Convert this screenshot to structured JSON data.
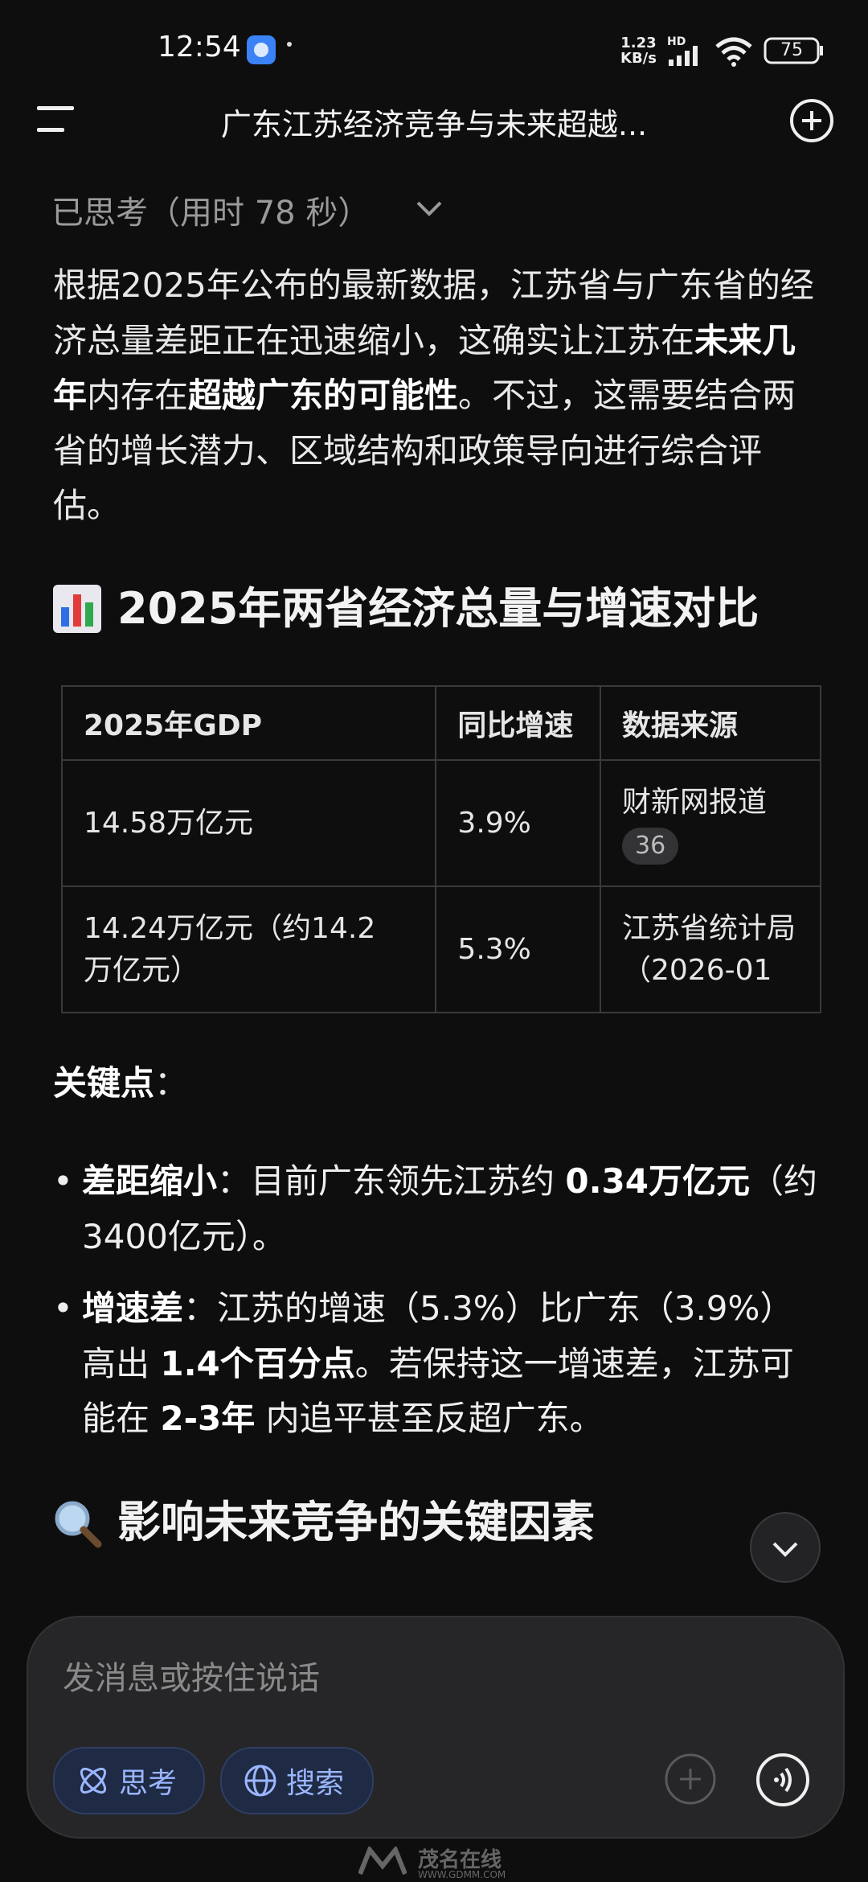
{
  "status_bar": {
    "time": "12:54",
    "network_speed": "1.23",
    "network_unit": "KB/s",
    "signal_label": "HD",
    "battery": "75"
  },
  "header": {
    "title": "广东江苏经济竞争与未来超越..."
  },
  "thinking": {
    "label": "已思考（用时 78 秒）"
  },
  "intro": [
    {
      "text": "根据2025年公布的最新数据，江苏省与广东省的经济总量差距正在迅速缩小，这确实让江苏在"
    },
    {
      "text": "未来几年",
      "bold": true
    },
    {
      "text": "内存在"
    },
    {
      "text": "超越广东的可能性",
      "bold": true
    },
    {
      "text": "。不过，这需要结合两省的增长潜力、区域结构和政策导向进行综合评估。"
    }
  ],
  "section_1": {
    "title": "2025年两省经济总量与增速对比"
  },
  "table": {
    "columns": [
      "2025年GDP",
      "同比增速",
      "数据来源"
    ],
    "rows": [
      [
        "14.58万亿元",
        "3.9%",
        "财新网报道"
      ],
      [
        "14.24万亿元（约14.2万亿元）",
        "5.3%",
        "江苏省统计局（2026-01"
      ]
    ],
    "citation": "36"
  },
  "key_points": [
    {
      "text": "关键点",
      "bold": true
    },
    {
      "text": "："
    }
  ],
  "bullets": [
    [
      {
        "text": "差距缩小",
        "bold": true
      },
      {
        "text": "：目前广东领先江苏约 "
      },
      {
        "text": "0.34万亿元",
        "bold": true
      },
      {
        "text": "（约3400亿元）。"
      }
    ],
    [
      {
        "text": "增速差",
        "bold": true
      },
      {
        "text": "：江苏的增速（5.3%）比广东（3.9%）高出 "
      },
      {
        "text": "1.4个百分点",
        "bold": true
      },
      {
        "text": "。若保持这一增速差，江苏可能在 "
      },
      {
        "text": "2-3年",
        "bold": true
      },
      {
        "text": " 内追平甚至反超广东。"
      }
    ]
  ],
  "section_2": {
    "title": "影响未来竞争的关键因素"
  },
  "input": {
    "placeholder": "发消息或按住说话",
    "buttons": [
      "思考",
      "搜索"
    ]
  },
  "watermark": {
    "name": "茂名在线",
    "url": "WWW.GDMM.COM"
  }
}
